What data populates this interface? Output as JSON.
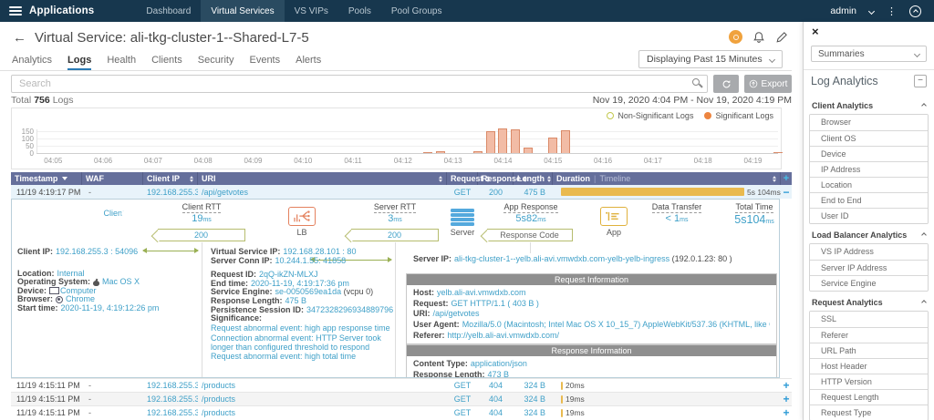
{
  "colors": {
    "topnav": "#17374e",
    "accent_blue": "#3fa0c8",
    "table_header": "#656f9b",
    "duration_bar": "#e9ba4f",
    "significant": "#ed8540",
    "non_significant": "#c3c94f"
  },
  "topnav": {
    "brand": "Applications",
    "items": [
      "Dashboard",
      "Virtual Services",
      "VS VIPs",
      "Pools",
      "Pool Groups"
    ],
    "active_item": "Virtual Services",
    "user": "admin"
  },
  "header": {
    "back": "←",
    "title_label": "Virtual Service:",
    "title_value": "ali-tkg-cluster-1--Shared-L7-5"
  },
  "tabs": {
    "items": [
      "Analytics",
      "Logs",
      "Health",
      "Clients",
      "Security",
      "Events",
      "Alerts"
    ],
    "active": "Logs"
  },
  "toolbar": {
    "time_selector": "Displaying Past 15 Minutes",
    "search_placeholder": "Search",
    "export_label": "Export",
    "total_label": "Total",
    "total_count": "756",
    "total_suffix": "Logs",
    "date_range": "Nov 19, 2020 4:04 PM - Nov 19, 2020 4:19 PM"
  },
  "chart_data": {
    "type": "bar",
    "x_ticks": [
      "04:05",
      "04:06",
      "04:07",
      "04:08",
      "04:09",
      "04:10",
      "04:11",
      "04:12",
      "04:13",
      "04:14",
      "04:15",
      "04:16",
      "04:17",
      "04:18",
      "04:19"
    ],
    "y_ticks": [
      0,
      50,
      100,
      150
    ],
    "ylim": [
      0,
      190
    ],
    "x_window_start": "04:04:40",
    "x_window_minutes": 15,
    "legend": [
      {
        "label": "Non-Significant Logs",
        "color": "#c3c94f",
        "filled": false
      },
      {
        "label": "Significant Logs",
        "color": "#ed8540",
        "filled": true
      }
    ],
    "series": [
      {
        "name": "Significant Logs",
        "fill": "#f2bca6",
        "stroke": "#da8a68",
        "points": [
          {
            "x": "04:12:30",
            "y": 8
          },
          {
            "x": "04:12:45",
            "y": 10
          },
          {
            "x": "04:13:30",
            "y": 12
          },
          {
            "x": "04:13:45",
            "y": 150
          },
          {
            "x": "04:14:00",
            "y": 170
          },
          {
            "x": "04:14:15",
            "y": 165
          },
          {
            "x": "04:14:30",
            "y": 40
          },
          {
            "x": "04:15:00",
            "y": 105
          },
          {
            "x": "04:15:15",
            "y": 155
          },
          {
            "x": "04:19:30",
            "y": 8
          }
        ]
      }
    ]
  },
  "log_table": {
    "columns": [
      {
        "label": "Timestamp",
        "sort": "desc"
      },
      {
        "label": "WAF",
        "sort": "none"
      },
      {
        "label": "Client IP",
        "sort": "both"
      },
      {
        "label": "URI",
        "sort": "both"
      },
      {
        "label": "Request",
        "sort": "both"
      },
      {
        "label": "Response",
        "sort": "both"
      },
      {
        "label": "Length",
        "sort": "both"
      },
      {
        "label": "Duration",
        "label2": "Timeline",
        "sort": "both"
      }
    ],
    "add_column_label": "+",
    "rows": [
      {
        "timestamp": "11/19 4:19:17 PM",
        "waf": "-",
        "client_ip": "192.168.255.3",
        "uri": "/api/getvotes",
        "request": "GET",
        "response": "200",
        "length": "475 B",
        "duration": "5s 104ms",
        "bar": 0.97,
        "expanded": true
      },
      {
        "timestamp": "11/19 4:15:11 PM",
        "waf": "-",
        "client_ip": "192.168.255.3",
        "uri": "/products",
        "request": "GET",
        "response": "404",
        "length": "324 B",
        "duration": "20ms",
        "bar": 0.012,
        "expanded": false
      },
      {
        "timestamp": "11/19 4:15:11 PM",
        "waf": "-",
        "client_ip": "192.168.255.3",
        "uri": "/products",
        "request": "GET",
        "response": "404",
        "length": "324 B",
        "duration": "19ms",
        "bar": 0.012,
        "expanded": false
      },
      {
        "timestamp": "11/19 4:15:11 PM",
        "waf": "-",
        "client_ip": "192.168.255.3",
        "uri": "/products",
        "request": "GET",
        "response": "404",
        "length": "324 B",
        "duration": "19ms",
        "bar": 0.012,
        "expanded": false
      }
    ]
  },
  "detail": {
    "flow": {
      "client_label": "Client",
      "lb_label": "LB",
      "server_label": "Server",
      "app_label": "App",
      "metrics": [
        {
          "name": "Client RTT",
          "value": "19",
          "unit": "ms"
        },
        {
          "name": "Server RTT",
          "value": "3",
          "unit": "ms"
        },
        {
          "name": "App Response",
          "value": "5s82",
          "unit": "ms"
        },
        {
          "name": "Data Transfer",
          "value": "< 1",
          "unit": "ms"
        },
        {
          "name": "Total Time",
          "value": "5s104",
          "unit": "ms"
        }
      ],
      "badges": [
        "200",
        "200",
        "Response Code"
      ]
    },
    "client_info": [
      {
        "label": "Client IP:",
        "value": "192.168.255.3 : 54096",
        "arrow": true
      },
      {
        "label": "Location:",
        "value": "Internal"
      },
      {
        "label": "Operating System:",
        "value": "Mac OS X",
        "icon": "apple-icon"
      },
      {
        "label": "Device:",
        "value": "Computer",
        "icon": "monitor-icon"
      },
      {
        "label": "Browser:",
        "value": "Chrome",
        "icon": "chrome-icon"
      },
      {
        "label": "Start time:",
        "value": "2020-11-19, 4:19:12:26 pm"
      }
    ],
    "lb_info": [
      {
        "label": "Virtual Service IP:",
        "value": "192.168.28.101 : 80"
      },
      {
        "label": "Server Conn IP:",
        "value": "10.244.1.55: 41858",
        "arrow": true
      },
      {
        "gap": true
      },
      {
        "label": "Request ID:",
        "value": "2qQ-ikZN-MLXJ"
      },
      {
        "label": "End time:",
        "value": "2020-11-19, 4:19:17:36 pm"
      },
      {
        "label": "Service Engine:",
        "value": "se-0050569ea1da",
        "suffix": " (vcpu 0)"
      },
      {
        "label": "Response Length:",
        "value": "475 B"
      },
      {
        "label": "Persistence Session ID:",
        "value": "3472328296934889796"
      },
      {
        "label": "Significance:",
        "value": ""
      }
    ],
    "significance": [
      "Request abnormal event: high app response time",
      "Connection abnormal event: HTTP Server took longer than configured threshold to respond",
      "Request abnormal event: high total time"
    ],
    "server_ip": {
      "label": "Server IP:",
      "value": "ali-tkg-cluster-1--yelb.ali-avi.vmwdxb.com-yelb-yelb-ingress",
      "suffix": " (192.0.1.23: 80 )"
    },
    "request_info": {
      "title": "Request Information",
      "fields": [
        {
          "label": "Host:",
          "value": "yelb.ali-avi.vmwdxb.com"
        },
        {
          "label": "Request:",
          "value": "GET HTTP/1.1 ( 403 B )"
        },
        {
          "label": "URI:",
          "value": "/api/getvotes"
        },
        {
          "label": "User Agent:",
          "value": "Mozilla/5.0 (Macintosh; Intel Mac OS X 10_15_7) AppleWebKit/537.36 (KHTML, like Gecko) Chrome/86.0.4240.193 Safari/537.36"
        },
        {
          "label": "Referer:",
          "value": "http://yelb.ali-avi.vmwdxb.com/"
        }
      ]
    },
    "response_info": {
      "title": "Response Information",
      "fields": [
        {
          "label": "Content Type:",
          "value": "application/json"
        },
        {
          "label": "Response Length:",
          "value": "473 B"
        }
      ]
    }
  },
  "sidebar": {
    "close": "×",
    "selector": "Summaries",
    "title": "Log Analytics",
    "minus_label": "−",
    "groups": [
      {
        "name": "Client Analytics",
        "items": [
          "Browser",
          "Client OS",
          "Device",
          "IP Address",
          "Location",
          "End to End",
          "User ID"
        ]
      },
      {
        "name": "Load Balancer Analytics",
        "items": [
          "VS IP Address",
          "Server IP Address",
          "Service Engine"
        ]
      },
      {
        "name": "Request Analytics",
        "items": [
          "SSL",
          "Referer",
          "URL Path",
          "Host Header",
          "HTTP Version",
          "Request Length",
          "Request Type"
        ]
      }
    ]
  }
}
